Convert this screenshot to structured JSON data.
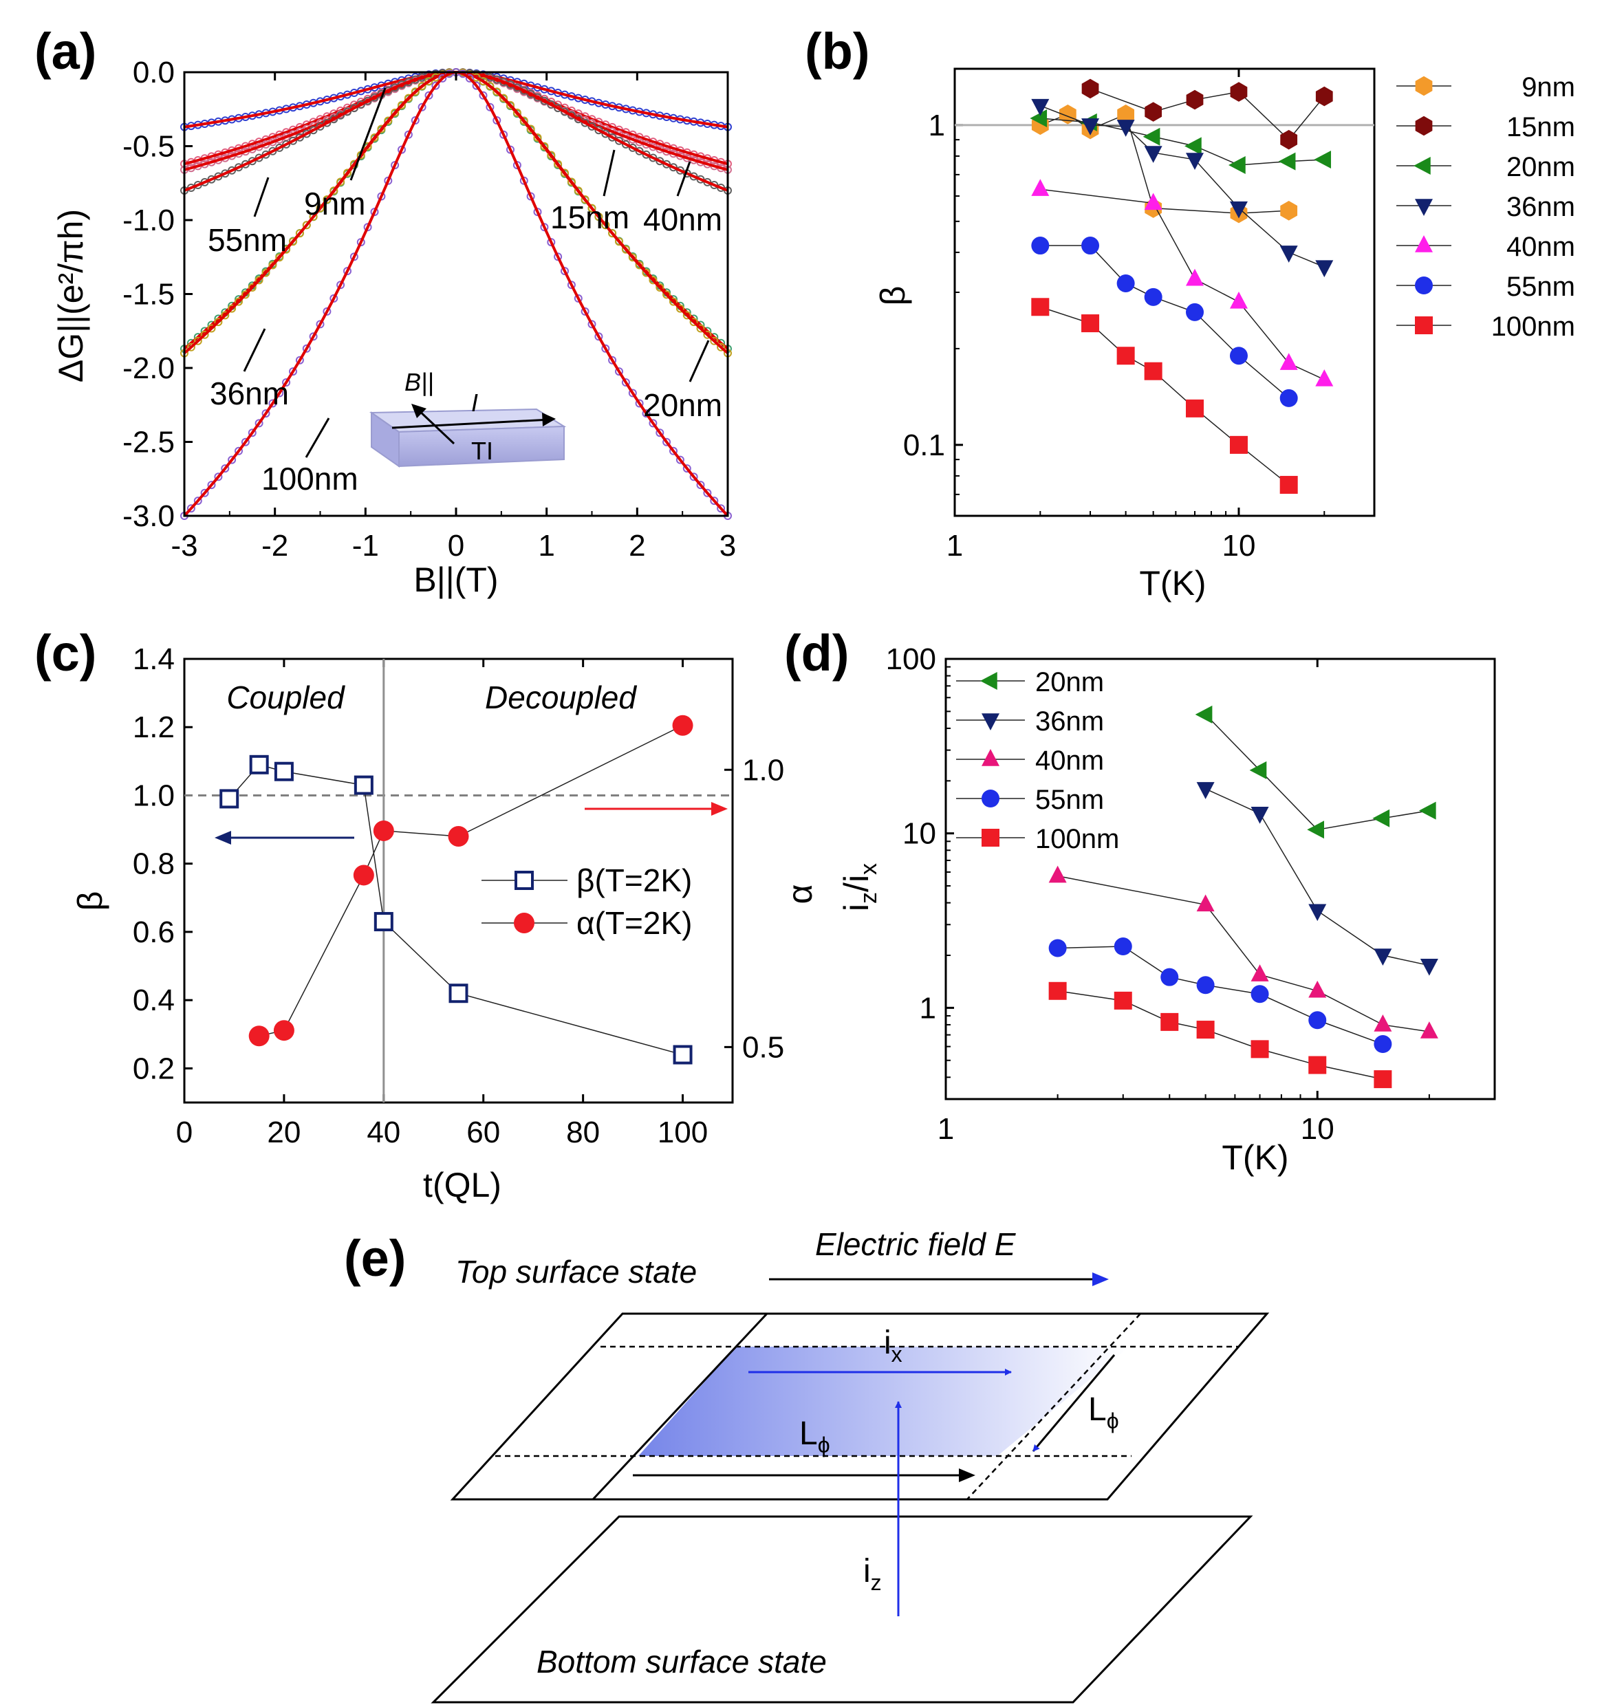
{
  "panels": {
    "a": {
      "label": "(a)"
    },
    "b": {
      "label": "(b)"
    },
    "c": {
      "label": "(c)"
    },
    "d": {
      "label": "(d)"
    },
    "e": {
      "label": "(e)"
    }
  },
  "chart_data": [
    {
      "id": "a",
      "type": "line",
      "title": "",
      "xlabel": "B||(T)",
      "ylabel": "ΔG||(e²/πh)",
      "xlim": [
        -3,
        3
      ],
      "ylim": [
        -3.0,
        0.0
      ],
      "xticks": [
        "-3",
        "-2",
        "-1",
        "0",
        "1",
        "2",
        "3"
      ],
      "yticks": [
        "0.0",
        "-0.5",
        "-1.0",
        "-1.5",
        "-2.0",
        "-2.5",
        "-3.0"
      ],
      "series": [
        {
          "name": "9nm",
          "value_at_3T": -0.37,
          "width": 0.9,
          "marker_color": "#3040d0"
        },
        {
          "name": "15nm",
          "value_at_3T": -0.62,
          "width": 1.0,
          "marker_color": "#e06080"
        },
        {
          "name": "40nm",
          "value_at_3T": -0.66,
          "width": 0.95,
          "marker_color": "#d07090"
        },
        {
          "name": "55nm",
          "value_at_3T": -0.8,
          "width": 1.3,
          "marker_color": "#606060"
        },
        {
          "name": "20nm",
          "value_at_3T": -1.87,
          "width": 1.1,
          "marker_color": "#40a070"
        },
        {
          "name": "36nm",
          "value_at_3T": -1.9,
          "width": 1.15,
          "marker_color": "#c0a020"
        },
        {
          "name": "100nm",
          "value_at_3T": -3.0,
          "width": 0.75,
          "marker_color": "#8a60d0"
        }
      ],
      "fit_line_color": "#e00000",
      "annotations": [
        "9nm",
        "15nm",
        "40nm",
        "55nm",
        "36nm",
        "20nm",
        "100nm"
      ],
      "inset": {
        "field": "B||",
        "current": "I",
        "material": "TI"
      }
    },
    {
      "id": "b",
      "type": "scatter",
      "xlabel": "T(K)",
      "ylabel": "β",
      "xscale": "log",
      "yscale": "log",
      "xlim": [
        1,
        30
      ],
      "ylim": [
        0.06,
        1.5
      ],
      "xticks": [
        "1",
        "10"
      ],
      "yticks": [
        "1",
        "0.1"
      ],
      "reference_line": 1.0,
      "legend_position": "outside-right",
      "series": [
        {
          "name": "9nm",
          "marker": "hexagon",
          "color": "#f39a2a",
          "x": [
            2,
            2.5,
            3,
            4,
            5,
            10,
            15
          ],
          "y": [
            1.0,
            1.08,
            0.97,
            1.08,
            0.55,
            0.53,
            0.54
          ]
        },
        {
          "name": "15nm",
          "marker": "hexagon",
          "color": "#7e0b0b",
          "x": [
            3,
            5,
            7,
            10,
            15,
            20
          ],
          "y": [
            1.3,
            1.1,
            1.2,
            1.27,
            0.9,
            1.23
          ]
        },
        {
          "name": "20nm",
          "marker": "triangle-left",
          "color": "#1a8a1a",
          "x": [
            2,
            3,
            5,
            7,
            10,
            15,
            20
          ],
          "y": [
            1.05,
            1.02,
            0.92,
            0.86,
            0.75,
            0.77,
            0.78
          ]
        },
        {
          "name": "36nm",
          "marker": "triangle-down",
          "color": "#12226e",
          "x": [
            2,
            3,
            4,
            5,
            7,
            10,
            15,
            20
          ],
          "y": [
            1.15,
            1.0,
            0.99,
            0.82,
            0.78,
            0.55,
            0.4,
            0.36
          ]
        },
        {
          "name": "40nm",
          "marker": "triangle-up",
          "color": "#ff1eea",
          "x": [
            2,
            5,
            7,
            10,
            15,
            20
          ],
          "y": [
            0.63,
            0.57,
            0.33,
            0.28,
            0.18,
            0.16
          ]
        },
        {
          "name": "55nm",
          "marker": "circle",
          "color": "#1f2fe8",
          "x": [
            2,
            3,
            4,
            5,
            7,
            10,
            15
          ],
          "y": [
            0.42,
            0.42,
            0.32,
            0.29,
            0.26,
            0.19,
            0.14
          ]
        },
        {
          "name": "100nm",
          "marker": "square",
          "color": "#ee1c25",
          "x": [
            2,
            3,
            4,
            5,
            7,
            10,
            15
          ],
          "y": [
            0.27,
            0.24,
            0.19,
            0.17,
            0.13,
            0.1,
            0.075
          ]
        }
      ]
    },
    {
      "id": "c",
      "type": "scatter",
      "xlabel": "t(QL)",
      "ylabel": "β",
      "ylabel_right": "α",
      "xlim": [
        0,
        110
      ],
      "ylim": [
        0.1,
        1.4
      ],
      "ylim_right": [
        0.4,
        1.2
      ],
      "xticks": [
        "0",
        "20",
        "40",
        "60",
        "80",
        "100"
      ],
      "yticks": [
        "0.2",
        "0.4",
        "0.6",
        "0.8",
        "1.0",
        "1.2",
        "1.4"
      ],
      "yticks_right": [
        "0.5",
        "1.0"
      ],
      "reference_line": 1.0,
      "divider_x": 40,
      "region_labels": [
        "Coupled",
        "Decoupled"
      ],
      "series": [
        {
          "name": "β(T=2K)",
          "axis": "left",
          "marker": "square-open",
          "color": "#12226e",
          "x": [
            9,
            15,
            20,
            36,
            40,
            55,
            100
          ],
          "y": [
            0.99,
            1.09,
            1.07,
            1.03,
            0.63,
            0.42,
            0.24
          ]
        },
        {
          "name": "α(T=2K)",
          "axis": "right",
          "marker": "circle",
          "color": "#ee1c25",
          "x": [
            15,
            20,
            36,
            40,
            55,
            100
          ],
          "y": [
            0.52,
            0.53,
            0.81,
            0.89,
            0.88,
            1.08
          ]
        }
      ]
    },
    {
      "id": "d",
      "type": "scatter",
      "xlabel": "T(K)",
      "ylabel": "iz/ix",
      "xscale": "log",
      "yscale": "log",
      "xlim": [
        1,
        30
      ],
      "ylim": [
        0.3,
        100
      ],
      "xticks": [
        "1",
        "10"
      ],
      "yticks": [
        "1",
        "10",
        "100"
      ],
      "legend_position": "top-left",
      "series": [
        {
          "name": "20nm",
          "marker": "triangle-left",
          "color": "#1a8a1a",
          "x": [
            5,
            7,
            10,
            15,
            20
          ],
          "y": [
            48,
            23,
            10.5,
            12.2,
            13.5
          ]
        },
        {
          "name": "36nm",
          "marker": "triangle-down",
          "color": "#12226e",
          "x": [
            5,
            7,
            10,
            15,
            20
          ],
          "y": [
            18,
            13,
            3.6,
            2.0,
            1.75
          ]
        },
        {
          "name": "40nm",
          "marker": "triangle-up",
          "color": "#e8157a",
          "x": [
            2,
            5,
            7,
            10,
            15,
            20
          ],
          "y": [
            5.7,
            3.9,
            1.55,
            1.25,
            0.8,
            0.73
          ]
        },
        {
          "name": "55nm",
          "marker": "circle",
          "color": "#1f2fe8",
          "x": [
            2,
            3,
            4,
            5,
            7,
            10,
            15
          ],
          "y": [
            2.2,
            2.25,
            1.5,
            1.35,
            1.2,
            0.85,
            0.62
          ]
        },
        {
          "name": "100nm",
          "marker": "square",
          "color": "#ee1c25",
          "x": [
            2,
            3,
            4,
            5,
            7,
            10,
            15
          ],
          "y": [
            1.25,
            1.1,
            0.83,
            0.75,
            0.58,
            0.47,
            0.39
          ]
        }
      ]
    }
  ],
  "schematic": {
    "top_label": "Top surface state",
    "bottom_label": "Bottom surface state",
    "field_label": "Electric field E",
    "ix": "i",
    "ix_sub": "x",
    "iz": "i",
    "iz_sub": "z",
    "lphi": "L",
    "lphi_sub": "ϕ"
  }
}
